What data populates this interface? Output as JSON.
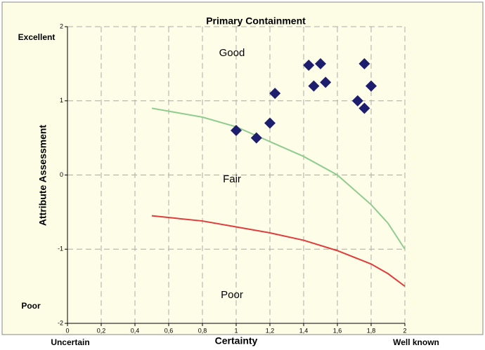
{
  "chart_data": {
    "type": "scatter",
    "title": "Primary Containment",
    "x_label": "Certainty",
    "y_label": "Attribute Assessment",
    "xlim": [
      0,
      2
    ],
    "ylim": [
      -2,
      2
    ],
    "xticks": [
      0,
      {
        "value": 0.2,
        "label": "0,2"
      },
      {
        "value": 0.4,
        "label": "0,4"
      },
      {
        "value": 0.6,
        "label": "0,6"
      },
      {
        "value": 0.8,
        "label": "0,8"
      },
      1,
      {
        "value": 1.2,
        "label": "1,2"
      },
      {
        "value": 1.4,
        "label": "1,4"
      },
      {
        "value": 1.6,
        "label": "1,6"
      },
      {
        "value": 1.8,
        "label": "1,8"
      },
      2
    ],
    "yticks": [
      -2,
      -1,
      0,
      1,
      2
    ],
    "grid": true,
    "points": {
      "color": "#1e1e6e",
      "x": [
        1.0,
        1.12,
        1.2,
        1.23,
        1.43,
        1.5,
        1.46,
        1.53,
        1.76,
        1.72,
        1.76,
        1.8
      ],
      "y": [
        0.6,
        0.5,
        0.7,
        1.1,
        1.48,
        1.5,
        1.2,
        1.25,
        1.5,
        1.0,
        0.9,
        1.2
      ]
    },
    "lines": [
      {
        "color": "#8fcc8f",
        "x": [
          0.5,
          0.8,
          1.0,
          1.2,
          1.4,
          1.6,
          1.8,
          1.9,
          2.0
        ],
        "y": [
          0.9,
          0.78,
          0.65,
          0.45,
          0.25,
          0.0,
          -0.4,
          -0.65,
          -1.0
        ]
      },
      {
        "color": "#e03c3c",
        "x": [
          0.5,
          0.8,
          1.0,
          1.2,
          1.4,
          1.6,
          1.8,
          1.9,
          2.0
        ],
        "y": [
          -0.55,
          -0.62,
          -0.7,
          -0.78,
          -0.88,
          -1.02,
          -1.2,
          -1.33,
          -1.5
        ]
      }
    ],
    "region_labels": [
      "Good",
      "Fair",
      "Poor"
    ],
    "y_end_labels": [
      "Excellent",
      "Poor"
    ],
    "x_end_labels": [
      "Uncertain",
      "Well known"
    ]
  }
}
